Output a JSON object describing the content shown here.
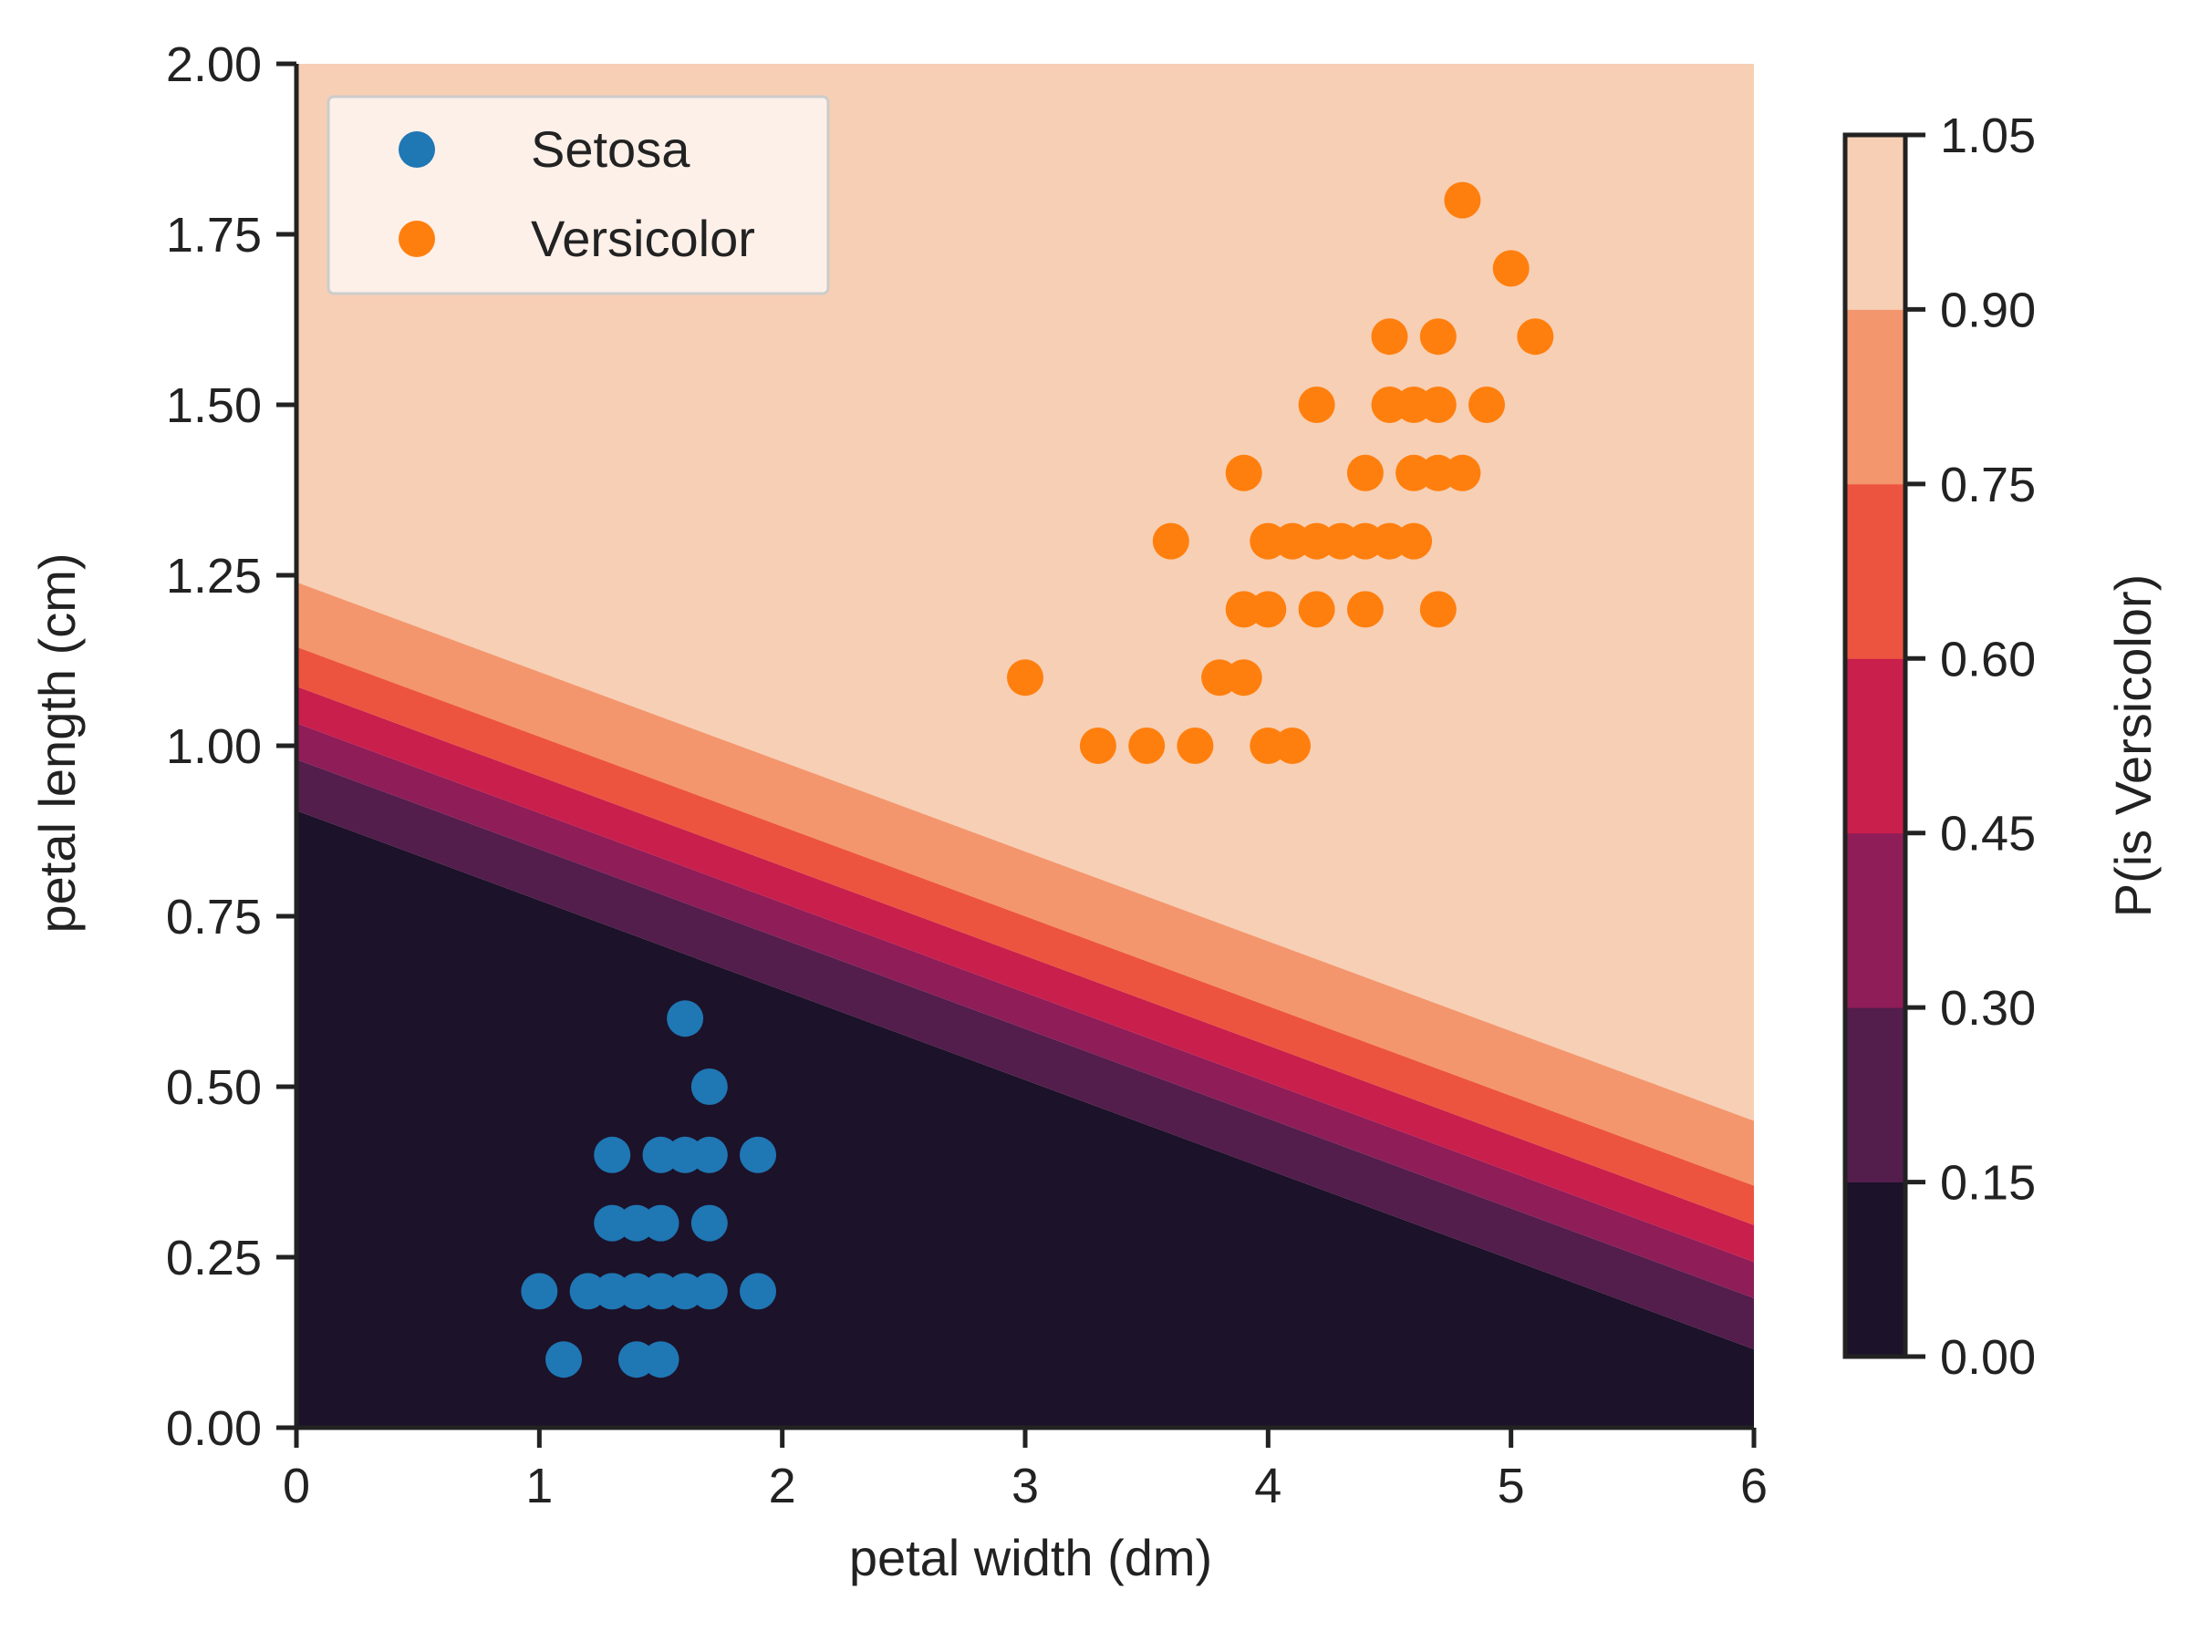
{
  "chart_data": {
    "type": "scatter",
    "xlabel": "petal width (dm)",
    "ylabel": "petal length (cm)",
    "xlim": [
      0,
      6
    ],
    "ylim": [
      0,
      2
    ],
    "xticks": [
      "0",
      "1",
      "2",
      "3",
      "4",
      "5",
      "6"
    ],
    "yticks": [
      "0.00",
      "0.25",
      "0.50",
      "0.75",
      "1.00",
      "1.25",
      "1.50",
      "1.75",
      "2.00"
    ],
    "grid": false,
    "legend_placement": "top-left",
    "series": [
      {
        "name": "Setosa",
        "color": "#1f77b4",
        "points": [
          [
            1.6,
            0.6
          ],
          [
            1.7,
            0.5
          ],
          [
            1.3,
            0.4
          ],
          [
            1.5,
            0.4
          ],
          [
            1.6,
            0.4
          ],
          [
            1.7,
            0.4
          ],
          [
            1.9,
            0.4
          ],
          [
            1.3,
            0.3
          ],
          [
            1.4,
            0.3
          ],
          [
            1.5,
            0.3
          ],
          [
            1.7,
            0.3
          ],
          [
            1.0,
            0.2
          ],
          [
            1.2,
            0.2
          ],
          [
            1.3,
            0.2
          ],
          [
            1.4,
            0.2
          ],
          [
            1.5,
            0.2
          ],
          [
            1.6,
            0.2
          ],
          [
            1.7,
            0.2
          ],
          [
            1.9,
            0.2
          ],
          [
            1.1,
            0.1
          ],
          [
            1.4,
            0.1
          ],
          [
            1.5,
            0.1
          ]
        ]
      },
      {
        "name": "Versicolor",
        "color": "#ff7f0e",
        "points": [
          [
            4.8,
            1.8
          ],
          [
            5.0,
            1.7
          ],
          [
            4.5,
            1.6
          ],
          [
            4.7,
            1.6
          ],
          [
            5.1,
            1.6
          ],
          [
            4.2,
            1.5
          ],
          [
            4.5,
            1.5
          ],
          [
            4.6,
            1.5
          ],
          [
            4.7,
            1.5
          ],
          [
            4.9,
            1.5
          ],
          [
            3.9,
            1.4
          ],
          [
            4.4,
            1.4
          ],
          [
            4.6,
            1.4
          ],
          [
            4.7,
            1.4
          ],
          [
            4.8,
            1.4
          ],
          [
            3.6,
            1.3
          ],
          [
            4.0,
            1.3
          ],
          [
            4.1,
            1.3
          ],
          [
            4.2,
            1.3
          ],
          [
            4.3,
            1.3
          ],
          [
            4.4,
            1.3
          ],
          [
            4.5,
            1.3
          ],
          [
            4.6,
            1.3
          ],
          [
            3.9,
            1.2
          ],
          [
            4.0,
            1.2
          ],
          [
            4.2,
            1.2
          ],
          [
            4.4,
            1.2
          ],
          [
            4.7,
            1.2
          ],
          [
            3.0,
            1.1
          ],
          [
            3.8,
            1.1
          ],
          [
            3.9,
            1.1
          ],
          [
            3.3,
            1.0
          ],
          [
            3.5,
            1.0
          ],
          [
            3.7,
            1.0
          ],
          [
            4.0,
            1.0
          ],
          [
            4.1,
            1.0
          ]
        ]
      }
    ],
    "contour": {
      "levels": [
        0.0,
        0.15,
        0.3,
        0.45,
        0.6,
        0.75,
        0.9,
        1.05
      ],
      "colors": [
        "#1c1229",
        "#531d4c",
        "#8e1d58",
        "#c91f4c",
        "#ed5440",
        "#f4966d",
        "#f7cfb4"
      ],
      "boundaries": [
        {
          "p": 0.15,
          "y_at_x0": 0.905,
          "y_at_x6": 0.115
        },
        {
          "p": 0.3,
          "y_at_x0": 0.98,
          "y_at_x6": 0.19
        },
        {
          "p": 0.45,
          "y_at_x0": 1.033,
          "y_at_x6": 0.243
        },
        {
          "p": 0.6,
          "y_at_x0": 1.087,
          "y_at_x6": 0.297
        },
        {
          "p": 0.75,
          "y_at_x0": 1.145,
          "y_at_x6": 0.355
        },
        {
          "p": 0.9,
          "y_at_x0": 1.24,
          "y_at_x6": 0.45
        }
      ]
    },
    "colorbar": {
      "label": "P(is Versicolor)",
      "ticks": [
        "0.00",
        "0.15",
        "0.30",
        "0.45",
        "0.60",
        "0.75",
        "0.90",
        "1.05"
      ]
    }
  }
}
